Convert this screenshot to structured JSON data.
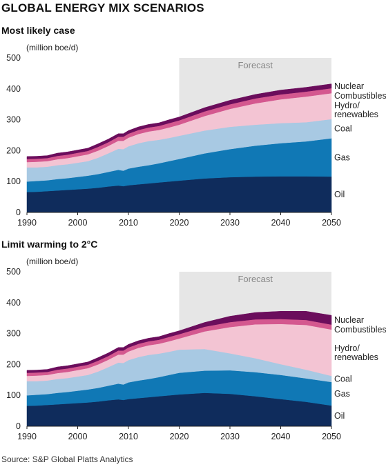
{
  "title": "GLOBAL ENERGY MIX SCENARIOS",
  "source": "Source: S&P Global Platts Analytics",
  "colors": {
    "oil": "#0f2c5c",
    "gas": "#1078b5",
    "coal": "#a8c9e3",
    "hydro_renewables": "#f3c4d3",
    "combustibles": "#d4588f",
    "nuclear": "#6b0d5c",
    "forecast_bg": "#e6e6e6"
  },
  "chart_data": [
    {
      "type": "area",
      "stacked": true,
      "title": "Most likely case",
      "unit_label": "(million boe/d)",
      "forecast_label": "Forecast",
      "forecast_start": 2020,
      "xlim": [
        1990,
        2050
      ],
      "ylim": [
        0,
        500
      ],
      "x_ticks": [
        "1990",
        "2000",
        "2010",
        "2020",
        "2030",
        "2040",
        "2050"
      ],
      "y_ticks": [
        "0",
        "100",
        "200",
        "300",
        "400",
        "500"
      ],
      "x": [
        1990,
        1992,
        1994,
        1996,
        1998,
        2000,
        2002,
        2004,
        2006,
        2008,
        2009,
        2010,
        2012,
        2014,
        2016,
        2018,
        2020,
        2025,
        2030,
        2035,
        2040,
        2045,
        2050
      ],
      "series": [
        {
          "name": "Oil",
          "key": "oil",
          "values": [
            66,
            67,
            69,
            71,
            73,
            75,
            77,
            80,
            84,
            87,
            85,
            88,
            91,
            94,
            97,
            100,
            103,
            110,
            114,
            116,
            117,
            117,
            116
          ]
        },
        {
          "name": "Gas",
          "key": "gas",
          "values": [
            34,
            35,
            35,
            37,
            38,
            40,
            42,
            44,
            47,
            51,
            50,
            54,
            57,
            59,
            62,
            66,
            70,
            81,
            91,
            100,
            107,
            113,
            124
          ]
        },
        {
          "name": "Coal",
          "key": "coal",
          "values": [
            46,
            44,
            44,
            45,
            45,
            46,
            47,
            53,
            60,
            68,
            70,
            72,
            76,
            78,
            76,
            75,
            75,
            74,
            72,
            68,
            65,
            62,
            62
          ]
        },
        {
          "name": "Hydro/\nrenewables",
          "key": "hydro_renewables",
          "values": [
            17,
            18,
            18,
            19,
            20,
            21,
            22,
            23,
            24,
            26,
            27,
            28,
            30,
            31,
            32,
            34,
            36,
            47,
            58,
            69,
            77,
            83,
            84
          ]
        },
        {
          "name": "Combustibles",
          "key": "combustibles",
          "values": [
            10,
            10,
            10,
            11,
            11,
            11,
            11,
            12,
            12,
            13,
            13,
            13,
            13,
            13,
            13,
            14,
            14,
            15,
            15,
            16,
            16,
            16,
            16
          ]
        },
        {
          "name": "Nuclear",
          "key": "nuclear",
          "values": [
            8,
            8,
            8,
            9,
            9,
            9,
            9,
            10,
            10,
            10,
            10,
            10,
            10,
            10,
            10,
            11,
            11,
            12,
            13,
            13,
            14,
            14,
            14
          ]
        }
      ]
    },
    {
      "type": "area",
      "stacked": true,
      "title": "Limit warming to 2°C",
      "unit_label": "(million boe/d)",
      "forecast_label": "Forecast",
      "forecast_start": 2020,
      "xlim": [
        1990,
        2050
      ],
      "ylim": [
        0,
        500
      ],
      "x_ticks": [
        "1990",
        "2000",
        "2010",
        "2020",
        "2030",
        "2040",
        "2050"
      ],
      "y_ticks": [
        "0",
        "100",
        "200",
        "300",
        "400",
        "500"
      ],
      "x": [
        1990,
        1992,
        1994,
        1996,
        1998,
        2000,
        2002,
        2004,
        2006,
        2008,
        2009,
        2010,
        2012,
        2014,
        2016,
        2018,
        2020,
        2025,
        2030,
        2035,
        2040,
        2045,
        2050
      ],
      "series": [
        {
          "name": "Oil",
          "key": "oil",
          "values": [
            66,
            67,
            69,
            71,
            73,
            75,
            77,
            80,
            84,
            87,
            85,
            88,
            91,
            94,
            97,
            100,
            103,
            108,
            105,
            97,
            88,
            79,
            67
          ]
        },
        {
          "name": "Gas",
          "key": "gas",
          "values": [
            34,
            35,
            35,
            37,
            38,
            40,
            42,
            44,
            47,
            51,
            50,
            54,
            57,
            59,
            62,
            66,
            70,
            72,
            76,
            78,
            78,
            76,
            76
          ]
        },
        {
          "name": "Coal",
          "key": "coal",
          "values": [
            46,
            44,
            44,
            45,
            45,
            46,
            47,
            53,
            60,
            68,
            70,
            72,
            76,
            78,
            76,
            75,
            75,
            70,
            55,
            45,
            35,
            28,
            20
          ]
        },
        {
          "name": "Hydro/\nrenewables",
          "key": "hydro_renewables",
          "values": [
            17,
            18,
            18,
            19,
            20,
            21,
            22,
            23,
            24,
            26,
            27,
            28,
            30,
            31,
            32,
            34,
            36,
            57,
            85,
            110,
            130,
            145,
            150
          ]
        },
        {
          "name": "Combustibles",
          "key": "combustibles",
          "values": [
            10,
            10,
            10,
            11,
            11,
            11,
            11,
            12,
            12,
            13,
            13,
            13,
            13,
            13,
            13,
            14,
            14,
            15,
            16,
            16,
            16,
            16,
            16
          ]
        },
        {
          "name": "Nuclear",
          "key": "nuclear",
          "values": [
            8,
            8,
            8,
            9,
            9,
            9,
            9,
            10,
            10,
            10,
            10,
            10,
            10,
            10,
            10,
            11,
            11,
            14,
            19,
            22,
            25,
            28,
            30
          ]
        }
      ]
    }
  ]
}
